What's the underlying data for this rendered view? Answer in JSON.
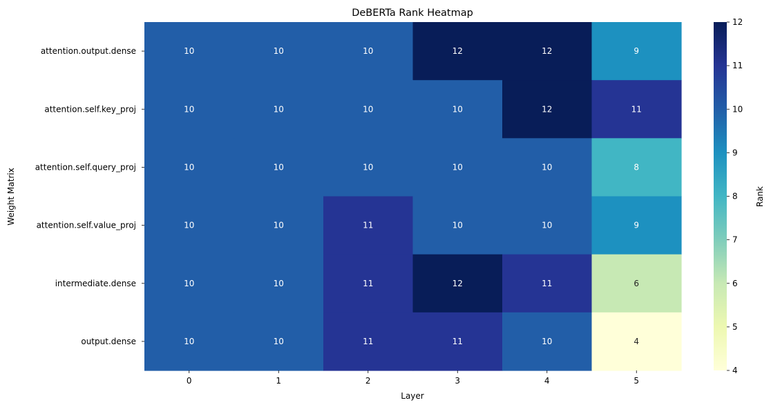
{
  "chart_data": {
    "type": "heatmap",
    "title": "DeBERTa Rank Heatmap",
    "xlabel": "Layer",
    "ylabel": "Weight Matrix",
    "x_categories": [
      "0",
      "1",
      "2",
      "3",
      "4",
      "5"
    ],
    "y_categories": [
      "attention.output.dense",
      "attention.self.key_proj",
      "attention.self.query_proj",
      "attention.self.value_proj",
      "intermediate.dense",
      "output.dense"
    ],
    "values": [
      [
        10,
        10,
        10,
        12,
        12,
        9
      ],
      [
        10,
        10,
        10,
        10,
        12,
        11
      ],
      [
        10,
        10,
        10,
        10,
        10,
        8
      ],
      [
        10,
        10,
        11,
        10,
        10,
        9
      ],
      [
        10,
        10,
        11,
        12,
        11,
        6
      ],
      [
        10,
        10,
        11,
        11,
        10,
        4
      ]
    ],
    "colorbar": {
      "label": "Rank",
      "range": [
        4,
        12
      ],
      "ticks": [
        "4",
        "5",
        "6",
        "7",
        "8",
        "9",
        "10",
        "11",
        "12"
      ],
      "colormap": "YlGnBu"
    },
    "annotate": true,
    "colors": {
      "ylgnbu": [
        "#ffffd9",
        "#edf8b1",
        "#c7e9b4",
        "#7fcdbb",
        "#41b6c4",
        "#1d91c0",
        "#225ea8",
        "#253494",
        "#081d58"
      ]
    }
  }
}
